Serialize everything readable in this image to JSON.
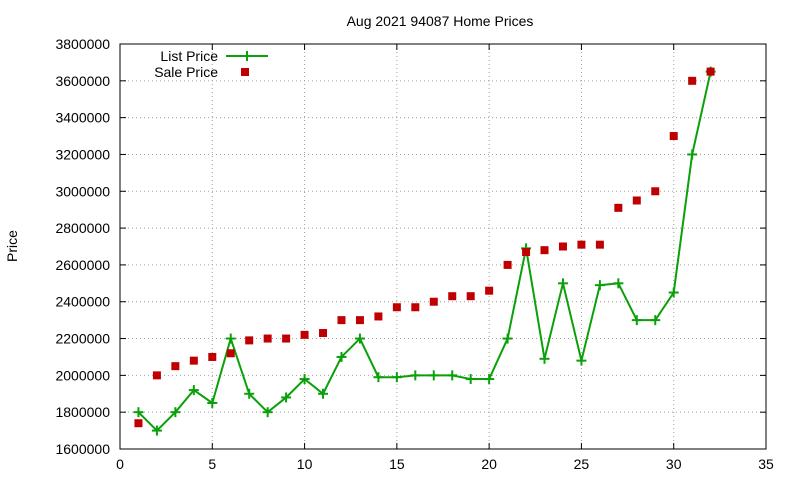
{
  "chart_data": {
    "type": "line",
    "title": "Aug 2021 94087 Home Prices",
    "xlabel": "",
    "ylabel": "Price",
    "xlim": [
      0,
      35
    ],
    "ylim": [
      1600000,
      3800000
    ],
    "x_ticks": [
      0,
      5,
      10,
      15,
      20,
      25,
      30,
      35
    ],
    "y_ticks": [
      1600000,
      1800000,
      2000000,
      2200000,
      2400000,
      2600000,
      2800000,
      3000000,
      3200000,
      3400000,
      3600000,
      3800000
    ],
    "grid": true,
    "legend_position": "top-left",
    "series": [
      {
        "name": "List Price",
        "style": "line-with-plus-markers",
        "color": "#0aa00a",
        "x": [
          1,
          2,
          3,
          4,
          5,
          6,
          7,
          8,
          9,
          10,
          11,
          12,
          13,
          14,
          15,
          16,
          17,
          18,
          19,
          20,
          21,
          22,
          23,
          24,
          25,
          26,
          27,
          28,
          29,
          30,
          31,
          32
        ],
        "values": [
          1800000,
          1700000,
          1800000,
          1920000,
          1850000,
          2200000,
          1900000,
          1800000,
          1880000,
          1980000,
          1900000,
          2100000,
          2200000,
          1990000,
          1990000,
          2000000,
          2000000,
          2000000,
          1980000,
          1980000,
          2200000,
          2690000,
          2090000,
          2500000,
          2080000,
          2490000,
          2500000,
          2300000,
          2300000,
          2450000,
          3200000,
          3650000
        ]
      },
      {
        "name": "Sale Price",
        "style": "square-markers",
        "color": "#c00000",
        "x": [
          1,
          2,
          3,
          4,
          5,
          6,
          7,
          8,
          9,
          10,
          11,
          12,
          13,
          14,
          15,
          16,
          17,
          18,
          19,
          20,
          21,
          22,
          23,
          24,
          25,
          26,
          27,
          28,
          29,
          30,
          31,
          32
        ],
        "values": [
          1740000,
          2000000,
          2050000,
          2080000,
          2100000,
          2120000,
          2190000,
          2200000,
          2200000,
          2220000,
          2230000,
          2300000,
          2300000,
          2320000,
          2370000,
          2370000,
          2400000,
          2430000,
          2430000,
          2460000,
          2600000,
          2670000,
          2680000,
          2700000,
          2710000,
          2710000,
          2910000,
          2950000,
          3000000,
          3300000,
          3600000,
          3650000
        ]
      }
    ]
  }
}
